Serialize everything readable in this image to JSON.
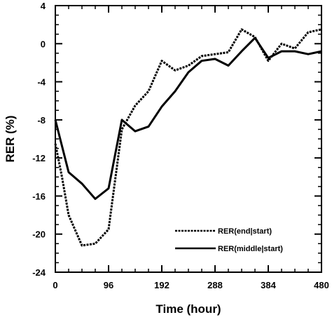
{
  "chart_data": {
    "type": "line",
    "xlabel": "Time (hour)",
    "ylabel": "RER (%)",
    "xlim": [
      0,
      480
    ],
    "ylim": [
      -24,
      4
    ],
    "xticks": [
      0,
      96,
      192,
      288,
      384,
      480
    ],
    "yticks": [
      4,
      0,
      -4,
      -8,
      -12,
      -16,
      -20,
      -24
    ],
    "grid": false,
    "legend_position": "bottom-right",
    "series": [
      {
        "name": "RER(end|start)",
        "style": "dashed",
        "color": "#000000",
        "points": [
          [
            0,
            -10.5
          ],
          [
            12,
            -14
          ],
          [
            24,
            -18
          ],
          [
            48,
            -21.2
          ],
          [
            72,
            -21
          ],
          [
            96,
            -19.5
          ],
          [
            120,
            -9
          ],
          [
            144,
            -6.5
          ],
          [
            168,
            -5
          ],
          [
            192,
            -1.8
          ],
          [
            216,
            -2.8
          ],
          [
            240,
            -2.3
          ],
          [
            264,
            -1.3
          ],
          [
            288,
            -1.1
          ],
          [
            312,
            -0.9
          ],
          [
            336,
            1.5
          ],
          [
            360,
            0.7
          ],
          [
            384,
            -1.8
          ],
          [
            408,
            0
          ],
          [
            432,
            -0.5
          ],
          [
            456,
            1.2
          ],
          [
            480,
            1.5
          ]
        ]
      },
      {
        "name": "RER(middle|start)",
        "style": "solid",
        "color": "#000000",
        "points": [
          [
            0,
            -8
          ],
          [
            24,
            -13.5
          ],
          [
            48,
            -14.7
          ],
          [
            72,
            -16.3
          ],
          [
            96,
            -15.2
          ],
          [
            120,
            -8
          ],
          [
            144,
            -9.2
          ],
          [
            168,
            -8.7
          ],
          [
            192,
            -6.6
          ],
          [
            216,
            -5
          ],
          [
            240,
            -3
          ],
          [
            264,
            -1.8
          ],
          [
            288,
            -1.6
          ],
          [
            312,
            -2.3
          ],
          [
            336,
            -0.8
          ],
          [
            360,
            0.6
          ],
          [
            384,
            -1.5
          ],
          [
            408,
            -0.8
          ],
          [
            432,
            -0.8
          ],
          [
            456,
            -1.1
          ],
          [
            480,
            -0.8
          ]
        ]
      }
    ]
  }
}
